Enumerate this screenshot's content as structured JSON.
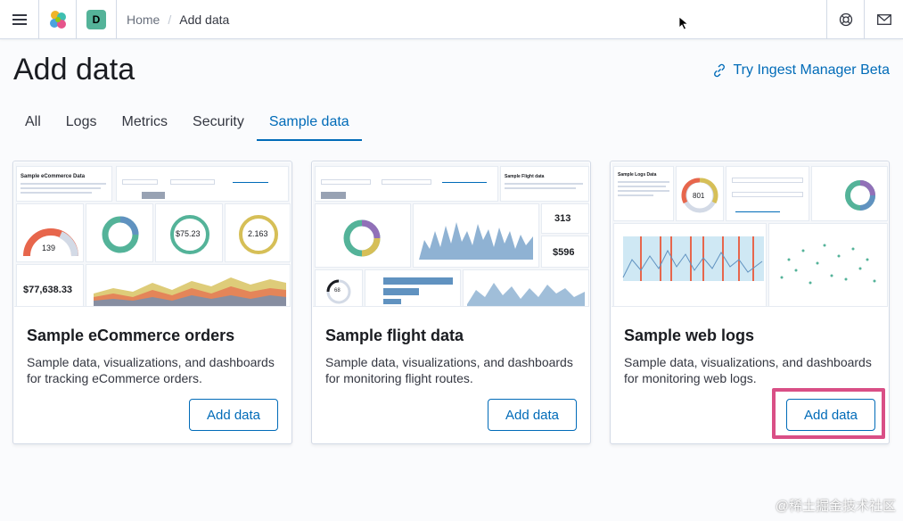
{
  "header": {
    "space_initial": "D",
    "breadcrumbs": [
      "Home",
      "Add data"
    ]
  },
  "page": {
    "title": "Add data",
    "ingest_link": "Try Ingest Manager Beta"
  },
  "tabs": [
    {
      "label": "All",
      "active": false
    },
    {
      "label": "Logs",
      "active": false
    },
    {
      "label": "Metrics",
      "active": false
    },
    {
      "label": "Security",
      "active": false
    },
    {
      "label": "Sample data",
      "active": true
    }
  ],
  "cards": [
    {
      "title": "Sample eCommerce orders",
      "description": "Sample data, visualizations, and dashboards for tracking eCommerce orders.",
      "button": "Add data",
      "thumb": {
        "heading": "Sample eCommerce Data",
        "metric1": "139",
        "metric2": "$75.23",
        "metric3": "2.163",
        "total": "$77,638.33"
      }
    },
    {
      "title": "Sample flight data",
      "description": "Sample data, visualizations, and dashboards for monitoring flight routes.",
      "button": "Add data",
      "thumb": {
        "heading": "Sample Flight data",
        "metric1": "313",
        "metric2": "$596",
        "metric3": "68"
      }
    },
    {
      "title": "Sample web logs",
      "description": "Sample data, visualizations, and dashboards for monitoring web logs.",
      "button": "Add data",
      "thumb": {
        "heading": "Sample Logs Data",
        "metric1": "801"
      }
    }
  ],
  "watermark": "@稀土掘金技术社区",
  "colors": {
    "accent": "#006bb8",
    "highlight": "#d94f86",
    "space": "#54b399"
  }
}
